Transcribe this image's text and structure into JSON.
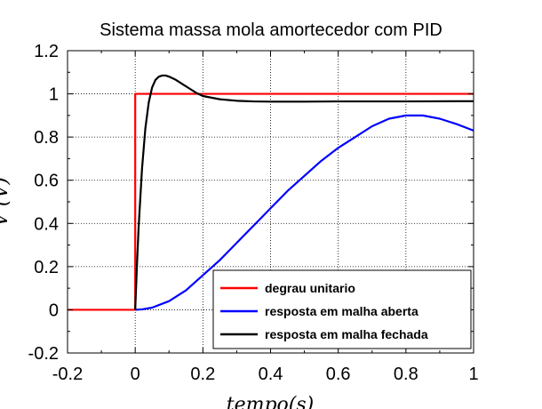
{
  "chart_data": {
    "type": "line",
    "title": "Sistema massa mola amortecedor com PID",
    "xlabel": "tempo(s)",
    "ylabel": "V (V)",
    "xlim": [
      -0.2,
      1
    ],
    "ylim": [
      -0.2,
      1.2
    ],
    "xticks": [
      "-0.2",
      "0",
      "0.2",
      "0.4",
      "0.6",
      "0.8",
      "1"
    ],
    "yticks": [
      "-0.2",
      "0",
      "0.2",
      "0.4",
      "0.6",
      "0.8",
      "1",
      "1.2"
    ],
    "grid": true,
    "legend_position": "bottom-right",
    "series": [
      {
        "name": "degrau unitario",
        "color": "#ff0000",
        "x": [
          -0.2,
          0.0,
          0.0,
          1.0
        ],
        "y": [
          0,
          0,
          1,
          1
        ]
      },
      {
        "name": "resposta em malha aberta",
        "color": "#0000ff",
        "x": [
          0.0,
          0.02,
          0.05,
          0.1,
          0.15,
          0.2,
          0.25,
          0.3,
          0.35,
          0.4,
          0.45,
          0.5,
          0.55,
          0.6,
          0.65,
          0.7,
          0.75,
          0.8,
          0.85,
          0.9,
          0.95,
          1.0
        ],
        "y": [
          0.0,
          0.002,
          0.01,
          0.04,
          0.09,
          0.16,
          0.23,
          0.31,
          0.39,
          0.47,
          0.55,
          0.62,
          0.69,
          0.75,
          0.8,
          0.85,
          0.885,
          0.9,
          0.9,
          0.885,
          0.86,
          0.83
        ]
      },
      {
        "name": "resposta em malha fechada",
        "color": "#000000",
        "x": [
          0.0,
          0.005,
          0.01,
          0.02,
          0.03,
          0.04,
          0.05,
          0.06,
          0.07,
          0.08,
          0.09,
          0.1,
          0.12,
          0.14,
          0.16,
          0.18,
          0.2,
          0.25,
          0.3,
          0.35,
          0.4,
          0.5,
          0.6,
          0.8,
          1.0
        ],
        "y": [
          0.0,
          0.2,
          0.38,
          0.65,
          0.84,
          0.96,
          1.03,
          1.065,
          1.08,
          1.085,
          1.085,
          1.08,
          1.065,
          1.045,
          1.025,
          1.005,
          0.99,
          0.975,
          0.968,
          0.965,
          0.964,
          0.964,
          0.965,
          0.965,
          0.966
        ]
      }
    ]
  }
}
